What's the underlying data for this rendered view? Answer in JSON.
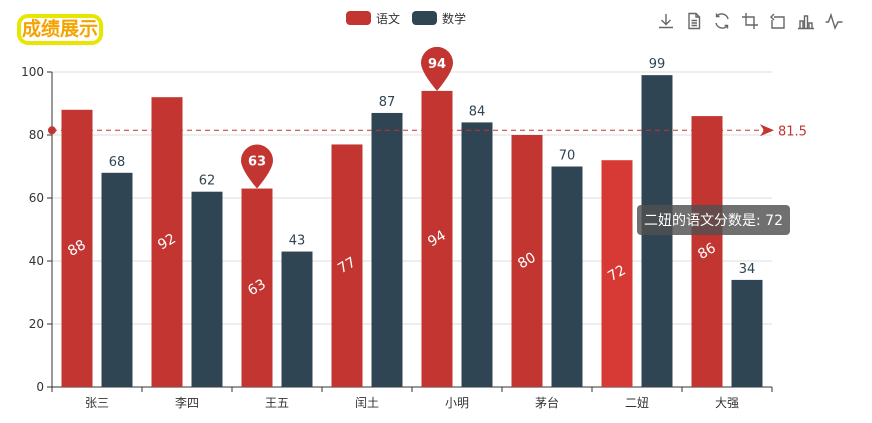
{
  "title": "成绩展示",
  "legend": [
    {
      "label": "语文",
      "color": "#c23531"
    },
    {
      "label": "数学",
      "color": "#2f4554"
    }
  ],
  "toolbox": [
    "download-icon",
    "data-view-icon",
    "restore-icon",
    "zoom-icon",
    "zoom-reset-icon",
    "bar-chart-icon",
    "line-chart-icon"
  ],
  "tooltip": "二妞的语文分数是: 72",
  "colors": {
    "chinese": "#c23531",
    "math": "#2f4554",
    "chinese_highlight": "#d73a34",
    "axis": "#333333",
    "grid": "#dddddd"
  },
  "chart_data": {
    "type": "bar",
    "categories": [
      "张三",
      "李四",
      "王五",
      "闰土",
      "小明",
      "茅台",
      "二妞",
      "大强"
    ],
    "series": [
      {
        "name": "语文",
        "values": [
          88,
          92,
          63,
          77,
          94,
          80,
          72,
          86
        ]
      },
      {
        "name": "数学",
        "values": [
          68,
          62,
          43,
          87,
          84,
          70,
          99,
          34
        ]
      }
    ],
    "ylim": [
      0,
      100
    ],
    "yticks": [
      0,
      20,
      40,
      60,
      80,
      100
    ],
    "markPoints": [
      {
        "series": "语文",
        "category": "王五",
        "value": 63
      },
      {
        "series": "语文",
        "category": "小明",
        "value": 94
      }
    ],
    "markLine": {
      "series": "语文",
      "type": "average",
      "value": 81.5,
      "label": "81.5"
    },
    "highlighted": {
      "series": "语文",
      "category": "二妞"
    },
    "legend_position": "top-center",
    "grid": true
  }
}
